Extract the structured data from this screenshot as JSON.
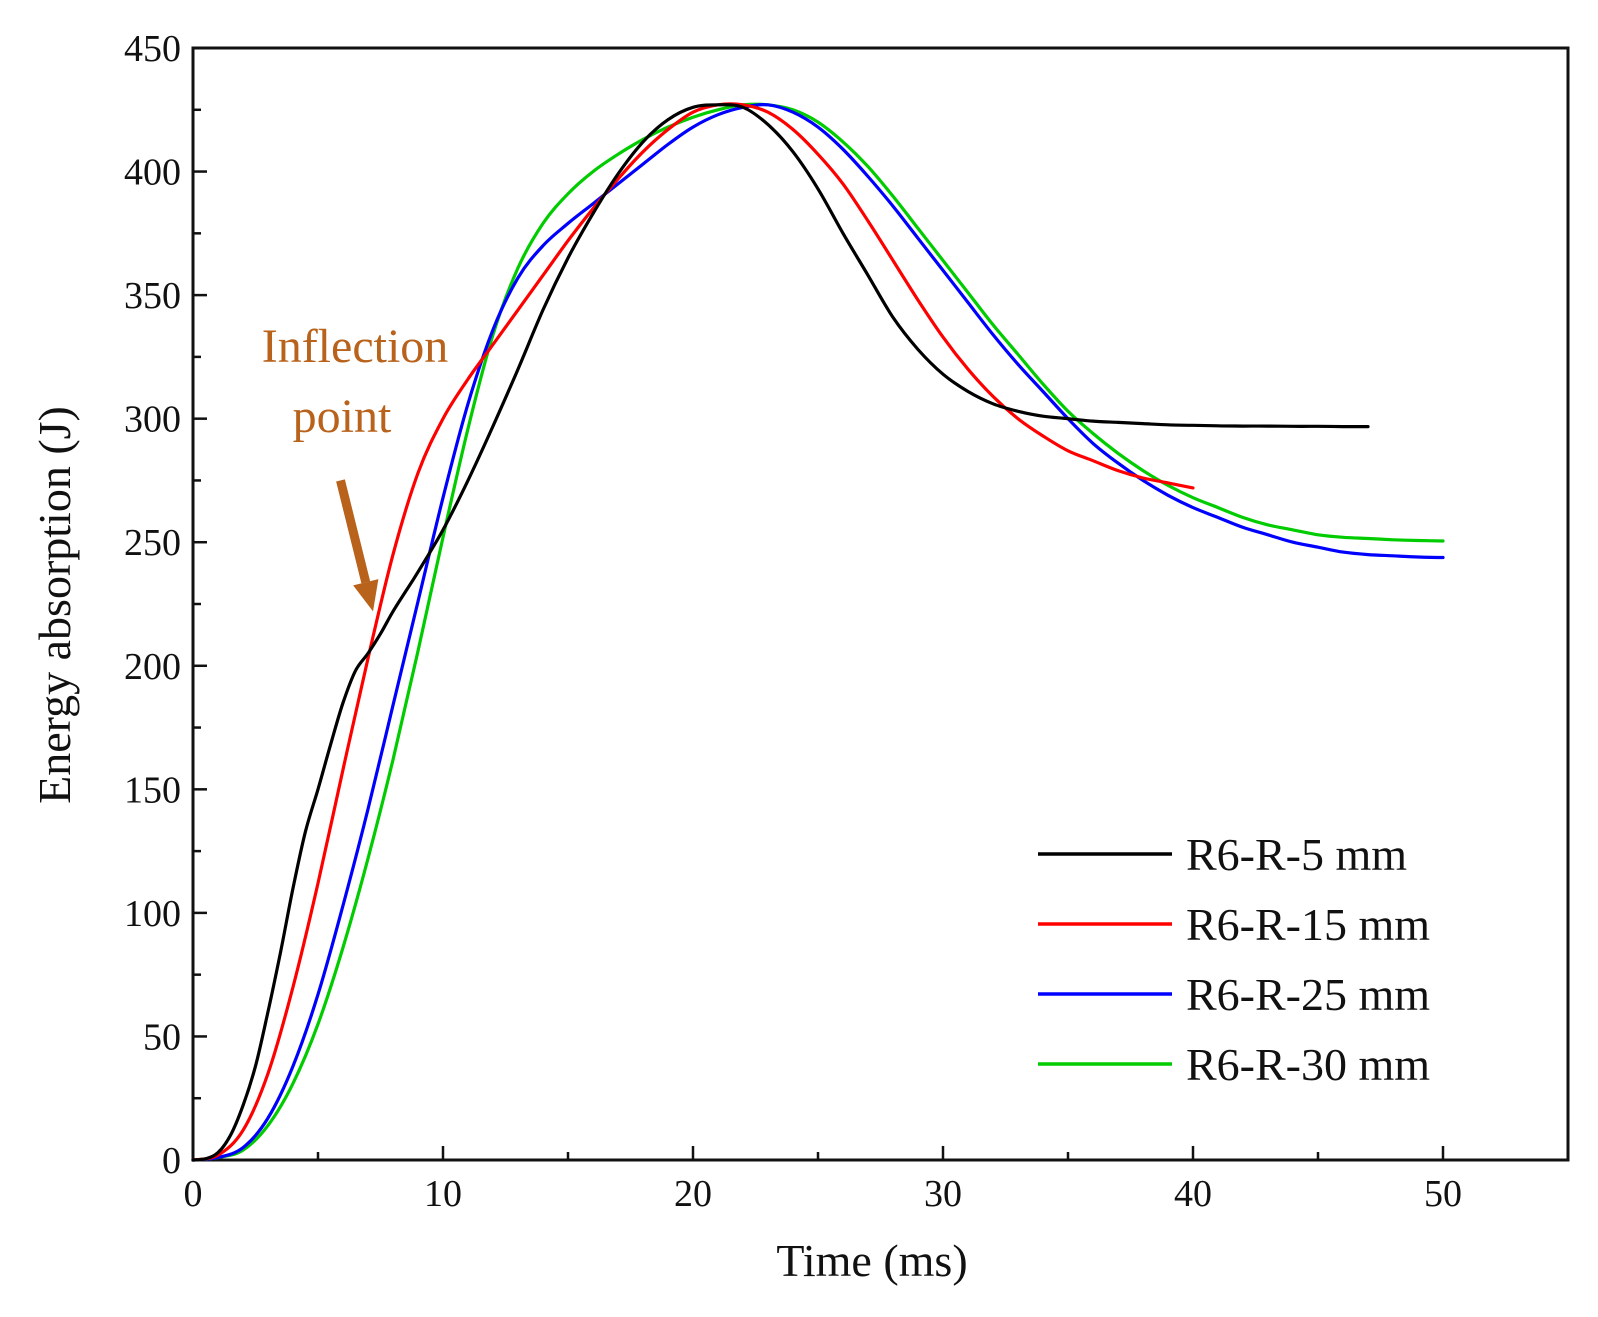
{
  "chart_data": {
    "type": "line",
    "title": "",
    "xlabel": "Time (ms)",
    "ylabel": "Energy absorption (J)",
    "xlim": [
      0,
      55
    ],
    "ylim": [
      0,
      450
    ],
    "xticks": [
      0,
      10,
      20,
      30,
      40,
      50
    ],
    "yticks": [
      0,
      50,
      100,
      150,
      200,
      250,
      300,
      350,
      400,
      450
    ],
    "grid": false,
    "legend_position": "bottom-right",
    "annotation": {
      "lines": [
        "Inflection",
        "point"
      ],
      "color": "#b8621b",
      "target": [
        7.2,
        222
      ],
      "arrow_from": [
        5.9,
        275
      ]
    },
    "series": [
      {
        "name": "R6-R-5 mm",
        "color": "#000000",
        "x": [
          0,
          0.5,
          1,
          1.5,
          2,
          2.5,
          3,
          3.5,
          4,
          4.5,
          5,
          5.5,
          6,
          6.5,
          7,
          7.5,
          8,
          8.5,
          9,
          10,
          11,
          12,
          13,
          14,
          15,
          16,
          17,
          18,
          19,
          20,
          21,
          22,
          23,
          24,
          25,
          26,
          27,
          28,
          29,
          30,
          31,
          32,
          33,
          34,
          35,
          36,
          37,
          38,
          39,
          40,
          41,
          42,
          43,
          44,
          45,
          46,
          47
        ],
        "y": [
          0,
          0.5,
          3,
          10,
          22,
          38,
          60,
          84,
          110,
          133,
          150,
          168,
          185,
          198,
          205,
          213,
          222,
          230,
          238,
          255,
          275,
          297,
          320,
          344,
          365,
          383,
          399,
          412,
          421,
          426,
          427,
          426,
          419,
          408,
          393,
          375,
          358,
          341,
          328,
          318,
          311,
          306,
          303,
          301,
          300,
          299,
          298.5,
          298,
          297.5,
          297.3,
          297.1,
          297,
          297,
          296.9,
          296.9,
          296.8,
          296.8
        ]
      },
      {
        "name": "R6-R-15 mm",
        "color": "#ff0000",
        "x": [
          0,
          1,
          2,
          3,
          4,
          5,
          6,
          7,
          8,
          9,
          10,
          11,
          12,
          13,
          14,
          15,
          16,
          17,
          18,
          19,
          20,
          21,
          22,
          23,
          24,
          25,
          26,
          27,
          28,
          29,
          30,
          31,
          32,
          33,
          34,
          35,
          36,
          37,
          38,
          39,
          40
        ],
        "y": [
          0,
          2,
          12,
          35,
          70,
          112,
          158,
          203,
          245,
          278,
          300,
          316,
          330,
          344,
          358,
          372,
          385,
          397,
          408,
          417,
          424,
          427,
          427,
          424,
          417,
          407,
          395,
          380,
          364,
          348,
          333,
          320,
          309,
          300,
          293,
          287,
          283,
          279,
          276,
          274,
          272
        ]
      },
      {
        "name": "R6-R-25 mm",
        "color": "#0000ff",
        "x": [
          0,
          1,
          2,
          3,
          4,
          5,
          6,
          7,
          8,
          9,
          10,
          11,
          12,
          13,
          14,
          15,
          16,
          17,
          18,
          19,
          20,
          21,
          22,
          23,
          24,
          25,
          26,
          27,
          28,
          29,
          30,
          31,
          32,
          33,
          34,
          35,
          36,
          37,
          38,
          39,
          40,
          41,
          42,
          43,
          44,
          45,
          46,
          47,
          48,
          49,
          50
        ],
        "y": [
          0,
          1,
          5,
          17,
          38,
          67,
          103,
          142,
          184,
          226,
          268,
          306,
          336,
          357,
          370,
          379,
          387,
          395,
          403,
          411,
          418,
          423,
          426,
          427,
          424,
          418,
          409,
          398,
          386,
          373,
          360,
          347,
          334,
          322,
          311,
          300,
          290,
          282,
          275,
          269,
          264,
          260,
          256,
          253,
          250,
          248,
          246,
          245,
          244.5,
          244,
          243.8
        ]
      },
      {
        "name": "R6-R-30 mm",
        "color": "#00cc00",
        "x": [
          0,
          1,
          2,
          3,
          4,
          5,
          6,
          7,
          8,
          9,
          10,
          11,
          12,
          13,
          14,
          15,
          16,
          17,
          18,
          19,
          20,
          21,
          22,
          23,
          24,
          25,
          26,
          27,
          28,
          29,
          30,
          31,
          32,
          33,
          34,
          35,
          36,
          37,
          38,
          39,
          40,
          41,
          42,
          43,
          44,
          45,
          46,
          47,
          48,
          49,
          50
        ],
        "y": [
          0,
          1,
          4,
          14,
          31,
          55,
          86,
          122,
          162,
          206,
          252,
          296,
          334,
          361,
          379,
          391,
          400,
          407,
          413,
          418,
          422,
          425,
          427,
          427,
          425,
          420,
          412,
          402,
          390,
          377,
          364,
          351,
          338,
          326,
          314,
          303,
          294,
          286,
          279,
          273,
          268,
          264,
          260,
          257,
          255,
          253,
          252,
          251.5,
          251,
          250.7,
          250.5
        ]
      }
    ]
  }
}
